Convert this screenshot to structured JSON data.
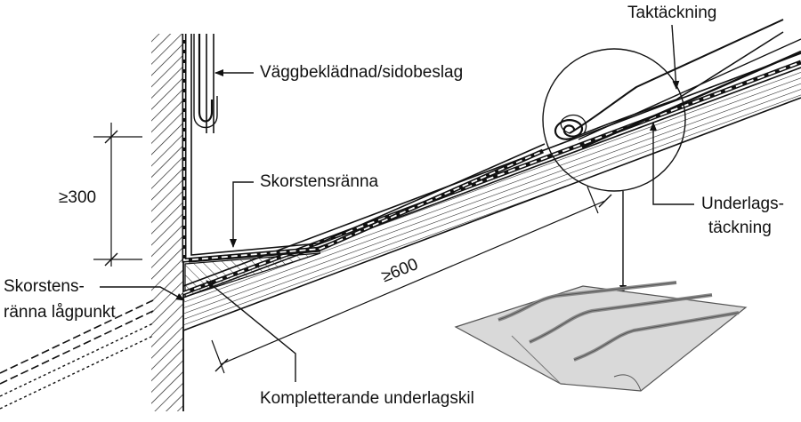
{
  "labels": {
    "taktackning": "Taktäckning",
    "vaggbekladnad": "Väggbeklädnad/sidobeslag",
    "skorstensranna": "Skorstensränna",
    "dim_300": "≥300",
    "underlags_1": "Underlags-",
    "underlags_2": "täckning",
    "lagpunkt_1": "Skorstens-",
    "lagpunkt_2": "ränna lågpunkt",
    "dim_600": "≥600",
    "kompletterande": "Kompletterande underlagskil"
  },
  "colors": {
    "line": "#111111",
    "hatch": "#222222",
    "sheet_fill": "#d9d9d9",
    "sheet_edge": "#555555",
    "sheet_groove": "#8a8a8a"
  }
}
